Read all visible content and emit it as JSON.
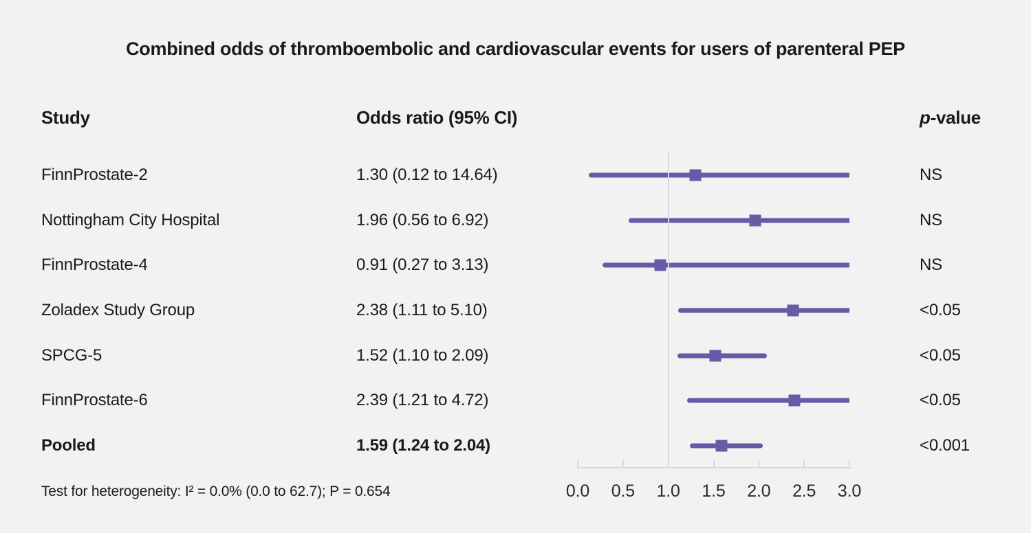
{
  "title": "Combined odds of thromboembolic and cardiovascular events for users of parenteral PEP",
  "columns": {
    "study": "Study",
    "odds_ratio": "Odds ratio (95% CI)",
    "p_value_italic": "p",
    "p_value_rest": "-value"
  },
  "footer": "Test for heterogeneity: I² = 0.0% (0.0 to 62.7); P = 0.654",
  "colors": {
    "background": "#f2f2f2",
    "purple": "#6a59a6",
    "axis": "#d6dae0",
    "text": "#1a1a1a"
  },
  "chart_data": {
    "type": "forest",
    "title": "Combined odds of thromboembolic and cardiovascular events for users of parenteral PEP",
    "xlabel": "",
    "ylabel": "",
    "xlim": [
      0.0,
      3.0
    ],
    "x_ticks": [
      "0.0",
      "0.5",
      "1.0",
      "1.5",
      "2.0",
      "2.5",
      "3.0"
    ],
    "x_tick_values": [
      0.0,
      0.5,
      1.0,
      1.5,
      2.0,
      2.5,
      3.0
    ],
    "reference_line": 1.0,
    "grid": false,
    "rows": [
      {
        "study": "FinnProstate-2",
        "or": 1.3,
        "ci_low": 0.12,
        "ci_high": 14.64,
        "or_label": "1.30 (0.12 to 14.64)",
        "p": "NS",
        "bold": false
      },
      {
        "study": "Nottingham City Hospital",
        "or": 1.96,
        "ci_low": 0.56,
        "ci_high": 6.92,
        "or_label": "1.96 (0.56 to 6.92)",
        "p": "NS",
        "bold": false
      },
      {
        "study": "FinnProstate-4",
        "or": 0.91,
        "ci_low": 0.27,
        "ci_high": 3.13,
        "or_label": "0.91 (0.27 to 3.13)",
        "p": "NS",
        "bold": false
      },
      {
        "study": "Zoladex Study Group",
        "or": 2.38,
        "ci_low": 1.11,
        "ci_high": 5.1,
        "or_label": "2.38 (1.11 to 5.10)",
        "p": "<0.05",
        "bold": false
      },
      {
        "study": "SPCG-5",
        "or": 1.52,
        "ci_low": 1.1,
        "ci_high": 2.09,
        "or_label": "1.52 (1.10 to 2.09)",
        "p": "<0.05",
        "bold": false
      },
      {
        "study": "FinnProstate-6",
        "or": 2.39,
        "ci_low": 1.21,
        "ci_high": 4.72,
        "or_label": "2.39 (1.21 to 4.72)",
        "p": "<0.05",
        "bold": false
      },
      {
        "study": "Pooled",
        "or": 1.59,
        "ci_low": 1.24,
        "ci_high": 2.04,
        "or_label": "1.59 (1.24 to 2.04)",
        "p": "<0.001",
        "bold": true
      }
    ],
    "heterogeneity_note": "Test for heterogeneity: I² = 0.0% (0.0 to 62.7); P = 0.654"
  }
}
